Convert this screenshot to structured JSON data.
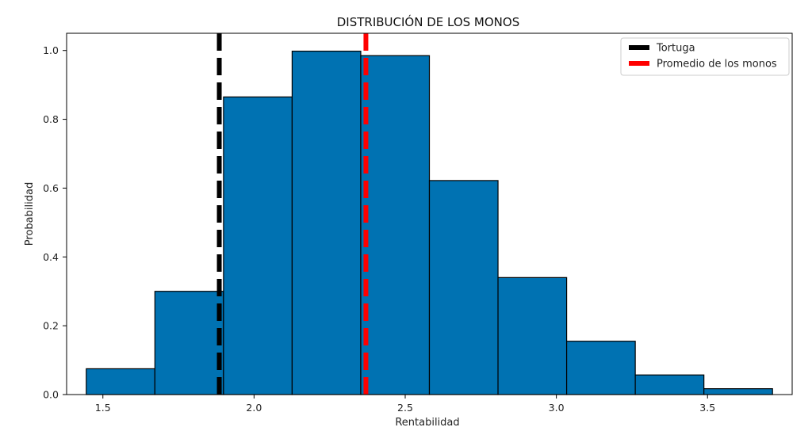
{
  "chart_data": {
    "type": "bar",
    "title": "DISTRIBUCIÓN DE LOS MONOS",
    "xlabel": "Rentabilidad",
    "ylabel": "Probabilidad",
    "xlim": [
      1.38,
      3.78
    ],
    "ylim": [
      0.0,
      1.05
    ],
    "xticks": [
      1.5,
      2.0,
      2.5,
      3.0,
      3.5
    ],
    "xtick_labels": [
      "1.5",
      "2.0",
      "2.5",
      "3.0",
      "3.5"
    ],
    "yticks": [
      0.0,
      0.2,
      0.4,
      0.6,
      0.8,
      1.0
    ],
    "ytick_labels": [
      "0.0",
      "0.2",
      "0.4",
      "0.6",
      "0.8",
      "1.0"
    ],
    "bin_edges": [
      1.445,
      1.672,
      1.899,
      2.126,
      2.353,
      2.58,
      2.807,
      3.034,
      3.261,
      3.488,
      3.715
    ],
    "values": [
      0.075,
      0.3,
      0.865,
      0.998,
      0.985,
      0.622,
      0.34,
      0.155,
      0.057,
      0.017
    ],
    "bar_color": "#0072B2",
    "grid": false,
    "legend_position": "top-right",
    "vlines": [
      {
        "name": "Tortuga",
        "x": 1.885,
        "color": "#000000"
      },
      {
        "name": "Promedio de los monos",
        "x": 2.37,
        "color": "#ff0000"
      }
    ]
  }
}
